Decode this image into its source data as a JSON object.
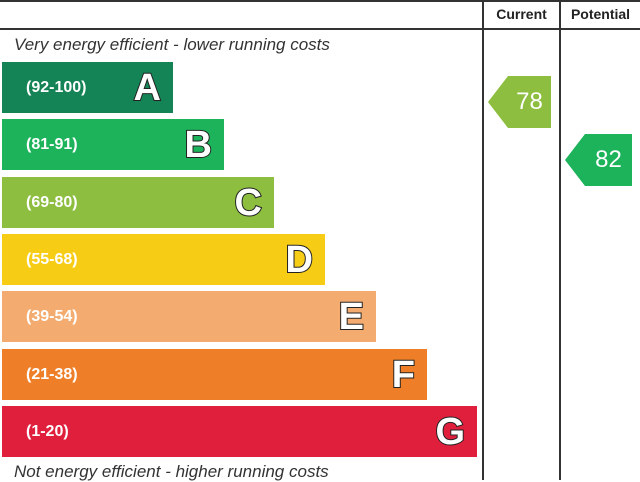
{
  "chart_data": {
    "type": "bar",
    "columns": {
      "current": "Current",
      "potential": "Potential"
    },
    "top_caption": "Very energy efficient - lower running costs",
    "bottom_caption": "Not energy efficient - higher running costs",
    "bands": [
      {
        "letter": "A",
        "range": "(92-100)",
        "min": 92,
        "max": 100,
        "color": "#148356"
      },
      {
        "letter": "B",
        "range": "(81-91)",
        "min": 81,
        "max": 91,
        "color": "#1cb35a"
      },
      {
        "letter": "C",
        "range": "(69-80)",
        "min": 69,
        "max": 80,
        "color": "#8dbe3f"
      },
      {
        "letter": "D",
        "range": "(55-68)",
        "min": 55,
        "max": 68,
        "color": "#f6cc15"
      },
      {
        "letter": "E",
        "range": "(39-54)",
        "min": 39,
        "max": 54,
        "color": "#f3ab6f"
      },
      {
        "letter": "F",
        "range": "(21-38)",
        "min": 21,
        "max": 38,
        "color": "#ee7f28"
      },
      {
        "letter": "G",
        "range": "(1-20)",
        "min": 1,
        "max": 20,
        "color": "#e01f3d"
      }
    ],
    "current": {
      "value": 78,
      "band": "C",
      "color": "#8dbe3f"
    },
    "potential": {
      "value": 82,
      "band": "B",
      "color": "#1cb35a"
    }
  }
}
